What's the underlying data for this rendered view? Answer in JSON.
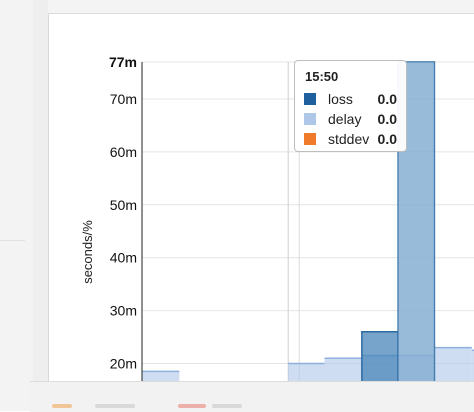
{
  "chart_data": {
    "type": "bar",
    "y_unit_label": "seconds/%",
    "yticks": [
      {
        "value": 20,
        "label": "20m"
      },
      {
        "value": 30,
        "label": "30m"
      },
      {
        "value": 40,
        "label": "40m"
      },
      {
        "value": 50,
        "label": "50m"
      },
      {
        "value": 60,
        "label": "60m"
      },
      {
        "value": 70,
        "label": "70m"
      },
      {
        "value": 77,
        "label": "77m"
      }
    ],
    "ylim": [
      16.5,
      77
    ],
    "xlim": [
      0,
      302
    ],
    "series": [
      {
        "name": "loss",
        "color": "#4a86b9",
        "bars": [
          {
            "x0": 200,
            "x1": 233,
            "value": 26
          },
          {
            "x0": 233,
            "x1": 266,
            "value": 77
          }
        ]
      },
      {
        "name": "delay",
        "color": "#aec6e8",
        "bars": [
          {
            "x0": 0,
            "x1": 34,
            "value": 18.5
          },
          {
            "x0": 133,
            "x1": 166,
            "value": 20
          },
          {
            "x0": 166,
            "x1": 200,
            "value": 21
          },
          {
            "x0": 200,
            "x1": 233,
            "value": 21.5
          },
          {
            "x0": 233,
            "x1": 266,
            "value": 21.5
          },
          {
            "x0": 266,
            "x1": 300,
            "value": 23
          },
          {
            "x0": 300,
            "x1": 302,
            "value": 22.5
          }
        ]
      },
      {
        "name": "stddev",
        "color": "#f28e2b",
        "bars": []
      }
    ],
    "hover_x": 133
  },
  "tooltip": {
    "time": "15:50",
    "rows": [
      {
        "name": "loss",
        "value": "0.0",
        "color": "#1f5f9e"
      },
      {
        "name": "delay",
        "value": "0.0",
        "color": "#aec6e8"
      },
      {
        "name": "stddev",
        "value": "0.0",
        "color": "#f07c2b"
      }
    ]
  }
}
